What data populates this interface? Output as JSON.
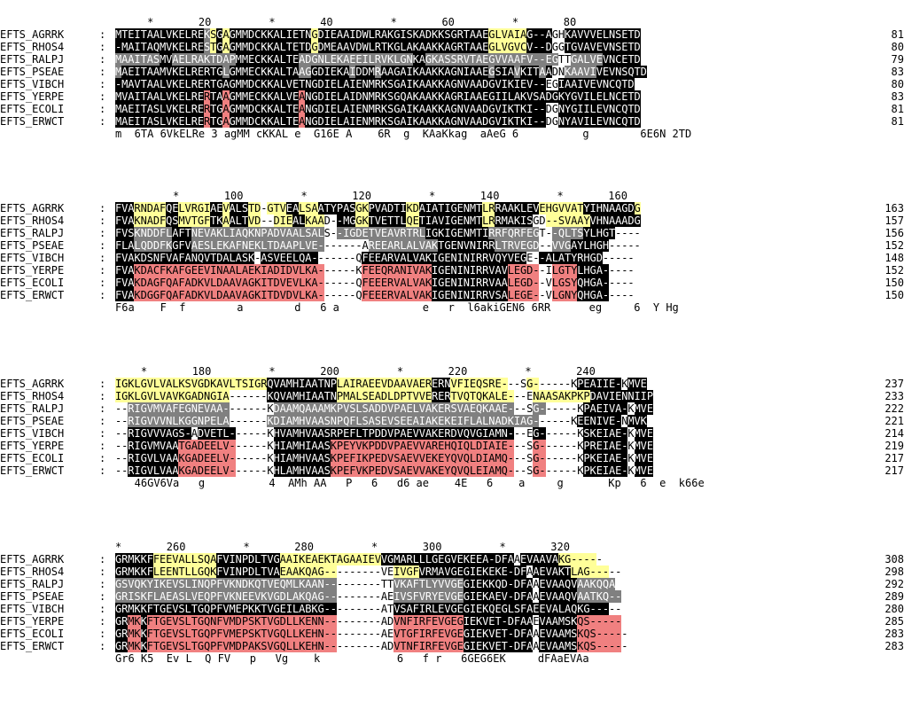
{
  "alignment": {
    "seq_names": [
      "EFTS_AGRRK",
      "EFTS_RHOS4",
      "EFTS_RALPJ",
      "EFTS_PSEAE",
      "EFTS_VIBCH",
      "EFTS_YERPE",
      "EFTS_ECOLI",
      "EFTS_ERWCT"
    ],
    "separator": ":",
    "colors": {
      "black": "#000000",
      "gray": "#808080",
      "yellow": "#ffff99",
      "pink": "#f08080"
    },
    "blocks": [
      {
        "ruler": "     *       20         *       40         *       60         *       80",
        "sequences": [
          "MTEITAALVKELREKSGAGMMDCKKALIETNGDIEAAIDWLRAKGISKADKKSGRTAAEGLVAIAG--AGHKAVVVELNSETD",
          "-MAITAQMVKELRESTGAGMMDCKKALTETDGDMEAAVDWLRTKGLAKAAKKAGRTAAEGLVGVCV--DGGTGVAVEVNSETD",
          "MAAITASMVAELRAKTDAPMMECKKALTEADGNLEKAEEILRVKLGNKAGKASSRVTAEGVVAAFV--EGTTGALVEVNCETD",
          "MAEITAAMVKELRERTGLGMMECKKALTAAGGDIEKAIDDMRAAGAIKAAKKAGNIAAEGSIAVKITAADNKAAVIVEVNSQTD",
          "-MAVTAALVKELRERTGAGMMDCKKALVETNGDIELAIENMRKSGAIKAAKKAGNVAADGVIKIEV--EGIAAIVEVNCQTD",
          "MVAITAALVKELRERTAAGMMECKKALVEANGDIELAIDNMRKSGQAKAAKKAGRIAAEGIILAKVSADGKYGVILELNCETD",
          "MAEITASLVKELRERTGAGMMDCKKALTEANGDIELAIENMRKSGAIKAAKKAGNVAADGVIKTKI--DGNYGIILEVNCQTD",
          "MAEITASLVKELRERTGAGMMDCKKALTEANGDIELAIENMRKSGAIKAAKKAGNVAADGVIKTKI--DGNYAVILEVNCQTD"
        ],
        "ends": [
          "81",
          "80",
          "79",
          "83",
          "80",
          "83",
          "81",
          "81"
        ],
        "consensus": "m  6TA 6VkELRe 3 agMM cKKAL e  G16E A    6R  g  KAaKkag  aAeG 6          g        6E6N 2TD",
        "highlights": [
          "kkkkkkkkkkkkkkgykykkkkkkkkkkkkkykkkkkkkkkkkkkkkkkkkkkkkkkkkyyyyyykkkk..kkkkkkkkkkkkkkkk",
          "kkkkkkkkkkkkkkgykykkkkkkkkkkkkkykkkkkkkkkkkkkkkkkkkkkkkkkkkyyyyyykkkk..kkkkkkkkkkkkkkkk",
          "gggggggkkggggggggggkkkkkkkkkkggggggggggggggggggkkggggggggggggggggggggg..gggggkkkkkkkkkkk",
          "gkkkkkkkkkkkkkkkkgkkkkkkkkkkkggkkkkkkgkkkgkkkkkkkkkkkkkkkkkgkkkgkkkgk..gggggkkkkkkkkkkk",
          "kkkkkkkkkkkkkkkkkkkkkkkkkkkkkkkkkkkkkkkkkkkkkkkkkkkkkkkkkkkkkkkkkkkk..kkkkkkkkkkkkkkkk",
          "kkkkkkkkkkkkkkpkkpkkkkkkkkkkkpkkkkkkkkkkkkkkkkkkkkkkkkkkkkkkkkkkkkkkkkkkkkkkkkkkkkkkkk",
          "kkkkkkkkkkkkkkpkkpkkkkkkkkkkkpkkkkkkkkkkkkkkkkkkkkkkkkkkkkkkkkkkkkkk..kkkkkkkkkkkkkkkk",
          "kkkkkkkkkkkkkkpkkpkkkkkkkkkkkpkkkkkkkkkkkkkkkkkkkkkkkkkkkkkkkkkkkkkk..kkkkkkkkkkkkkkkk"
        ]
      },
      {
        "ruler": "         *       100         *       120         *       140         *       160",
        "sequences": [
          "FVARNDAFQELVRGIAEVALSTD-GTVEALSAATYPASGKPVADTIKDAIATIGENMTLRRAAKLEVEHGVVATYIHNAAGDG",
          "FVAKNADFQSMVTGFTKAALTVD--DIEALKAAD--MGGKTVETTLQETIAVIGENMTLRRMAKISGD--SVAAYVHNAAADG",
          "FVSKNDDFLAFTNEVAKLIAQKNPADVAALSALS--IGDETVEAVRTRLIGKIGENMTIRRFQRFEGT--QLTSYLHGT----",
          "FLALQDDFKGFVAESLEKAFNEKLTDAAPLVE-------AREEARLALVAKTGENVNIRRLTRVEGD--VVGAYLHGH-----",
          "FVAKDSNFVAFANQVTDALASK-ASVEELQA-------QFEEARVALVAKIGENINIRRVQYVEGE--ALATYRHGD-----",
          "FVAKDACFKAFGEEVINAALAEKIADIDVLKA------KFEEQRANIVAKIGENINIRRVAVLEGD--ILGTYLHGA-----",
          "FVAKDAGFQAFADKVLDAAVAGKITDVEVLKA------QFEEERVALVAKIGENINIRRVAALEGD--VLGSYQHGA-----",
          "FVAKDGGFQAFADKVLDAAVAGKITDVDVLKA------QFEEERVALVAKIGENINIRRVSALEGE--VLGNYQHGA-----"
        ],
        "ends": [
          "163",
          "157",
          "156",
          "152",
          "148",
          "152",
          "150",
          "150"
        ],
        "consensus": "F6a    F  f        a        d   6 a             e   r  l6akiGEN6 6RR      eg     6  Y Hg",
        "highlights": [
          "kkkyyyyykkyyyyykkykkkyy.yyykkyyykkkkkkyykkkkkkyykkkkkkkkkkyykkkkkkkyyyyyyykkkkkkkkyykkkk",
          "kkkyyyyykkyyyyykkykkkyy..yyykkyyy..kkkyykkkkkkyykkkkkkkkkkyykkkkkk..yyyyyyykkkkkkkkyykk",
          "kkkggggggkkkggggggggggggggggggggg..ggggggggggggggkkkkkkkkkkgggggggg..gggggkkkkk....",
          "kkkggggggkkkggggggggggggggggggggg.......gggggggggggkkkkkkkkkggggggg..gggkkkkkk.....",
          "kkkkkkkkkkkkkkkkkkkkkk.kkkkkkkkk.......kkkkkkkkkkkkkkkkkkkkkkkkkk..kkkkkkkkkk.....",
          "kkkpppppppppppppppppppppppppppppp......pppppppppppkkkkkkkkkkkkppppp..ppppkkkkk.....",
          "kkkpppppppppppppppppppppppppppppp......pppppppppppkkkkkkkkkkkkppppp..ppppkkkkk.....",
          "kkkpppppppppppppppppppppppppppppp......pppppppppppkkkkkkkkkkkkppppp..ppppkkkkk....."
        ]
      },
      {
        "ruler": "    *       180         *       200         *       220         *       240",
        "sequences": [
          "IGKLGVLVALKSVGDKAVLTSIGRQVAMHIAATNPLAIRAEEVDAAVAERERNVFIEQSRE---SG------KPEAIIE-KMVE",
          "IGKLGVLVAVKGADNGIA------KQVAMHIAATNPMALSEADLDPTVVERERTVQTQKALE---ENAASAKPKPDAVIENNIIP",
          "--RIGVMVAFEGNEVAA-------KDAAMQAAAMKPVSLSADDVPAELVAKERSVAEQKAAE---SG------KPAEIVA-KMVE",
          "--RIGVVVNLKGGNPELA------KDIAMHVAASNPQFLSASEVSEEAIAKEKEIFLALNADKIAG------KEENIVE-NMVK",
          "--RIGVVVAGS-ADVETL------KHVAMHVAASRPEFLTPDDVPAEVVAKERDVQVGIAMN---EG------KSKEIAE-KMVE",
          "--RIGVMVAATGADEELV------KHIAMHIAASKPEYVKPDDVPAEVVAREHQIQLDIAIE---SG------KPREIAE-KMVE",
          "--RIGVLVAAKGADEELV------KHIAMHVAASKPEFIKPEDVSAEVVEKEYQVQLDIAMQ---SG------KPKEIAE-KMVE",
          "--RIGVLVAAKGADEELV------KHLAMHVAASKPEFVKPEDVSAEVVAKEYQVQLEIAMQ---SG------KPKEIAE-KMVE"
        ],
        "ends": [
          "237",
          "233",
          "222",
          "221",
          "214",
          "219",
          "217",
          "217"
        ],
        "consensus": "   46GV6Va   g          4  AMh AA   P   6   d6 ae    4E   6    a     g       Kp   6  e  k66e",
        "highlights": [
          "yyyyyyyyyyyyyyyyyyyyyyyykkkkkkkkkkkyyyyyyyyyyyyyyykkkyyyyyyyyy...yy......kkkkkkk.kkkk",
          "yyyyyyyyyyyyyyyyyy......kkkkkkkkkkkyyyyyyyyyyyyyyykkkyyyyyyyyyy...yyyyyyyyykkkkkkkkkkkk",
          "..gggggggggggggggg.......gggggggggggggggggggggggggggggggggggggg...gg......kkkkkkk.kkkk",
          "..gggggggggggggggg......ggggggggggggggggggggggggggggggggggggggggggg......kkkkkkk.kkkk",
          "..kkkkkkkkkk.kkkkkk......kkkkkkkkkkkkkkkkkkkkkkkkkkkkkkkkkkkkkk...kk......kkkkkkk.kkkk",
          "..kkkkkkkkppppppppp......kkkkkkkkkppppppppppppppppppppppppppppp...pp......kkkkkkk.kkkk",
          "..kkkkkkkkppppppppp......kkkkkkkkkppppppppppppppppppppppppppppp...pp......kkkkkkk.kkkk",
          "..kkkkkkkkppppppppp......kkkkkkkkkppppppppppppppppppppppppppppp...pp......kkkkkkk.kkkk"
        ]
      },
      {
        "ruler": "*       260         *       280         *       300         *       320",
        "sequences": [
          "GRMKKFFEEVALLSQAFVINPDLTVGAAIKEAEKTAGAAIEVVGMARLLLGEGVEKEEA-DFAAEVAAVAKG-----",
          "GRMKKFLEENTLLGQKFVINPDLTVAEAAKQAG---------VEIVGFVRMAVGEGIEKEKE-DFAAEVAKTLAG-----",
          "GSVQKYIKEVSLINQPFVKNDKQTVEQMLKAAN---------TTVKAFTLYVVGEGIEKKQD-DFAAEVAAQVAAKQQA",
          "GRISKFLAEASLVEQPFVKNEEVKVGDLAKQAG---------AEIVSFVRYEVGEGIEKAEV-DFAAEVAAQVAATKQ--",
          "GRMKKFTGEVSLTGQPFVMEPKKTVGEILABKG---------ATVSAFIRLEVGEGIEKQEGLSFAEEVALAQKG-----",
          "GRMKKFTGEVSLTGQNFVMDPSKTVGDLLKENN---------ADVNFIRFEVGEGIEKVET-DFAAEVAAMSKQS-----",
          "GRMKKFTGEVSLTGQPFVMEPSKTVGQLLKEHN---------AEVTGFIRFEVGEGIEKVET-DFAAEVAAMSKQS-----",
          "GRMKKFTGEVSLTGQPFVMDPAKSVGQLLKEHN---------ADVTNFIRFEVGEGIEKVET-DFAAEVAAMSKQS-----"
        ],
        "ends": [
          "308",
          "298",
          "292",
          "289",
          "280",
          "285",
          "283",
          "283"
        ],
        "consensus": "Gr6 K5  Ev L  Q FV   p   Vg    k            6   f r   6GEG6EK     dFAaEVAa",
        "highlights": [
          "kkkkkkyyyyyyyyyykkkkkkkkkkyyyyyyyyyyyyyyyykkkkkkkkkkkkkkkkkkkkk.kkkkkkyyyyyy.....",
          "kkkkkkyyyyyyyyyykkkkkkkkkkyyyyyyyyy.........yyyykkkkkkkkkkkkkkkkk.kkkkkkyyyyyy.....",
          "ggggggggggggggggggggggggggggggggggg.........gggggggggggkkkkkkkkkkk.kkkkkkggggggggggg",
          "ggggggggggggggggggggggggggggggggggg.........gggggggggggkkkkkkkkkkk.kkkkkkgggggggg..",
          "kkkkkkkkkkkkkkkkkkkkkkkkkkkkkkkkkkk.........kkkkkkkkkkkkkkkkkkkkkkkkkkkkkkkkkk.....",
          "kkppkpppppppppppppppppppppppppppppp.........pppppppppppkkkkkkkkkkk.kkkkkkppppppp.....",
          "kkppkpppppppppppppppppppppppppppppp.........pppppppppppkkkkkkkkkkk.kkkkkkppppppp.....",
          "kkppkpppppppppppppppppppppppppppppp.........pppppppppppkkkkkkkkkkk.kkkkkkppppppp....."
        ]
      }
    ]
  }
}
